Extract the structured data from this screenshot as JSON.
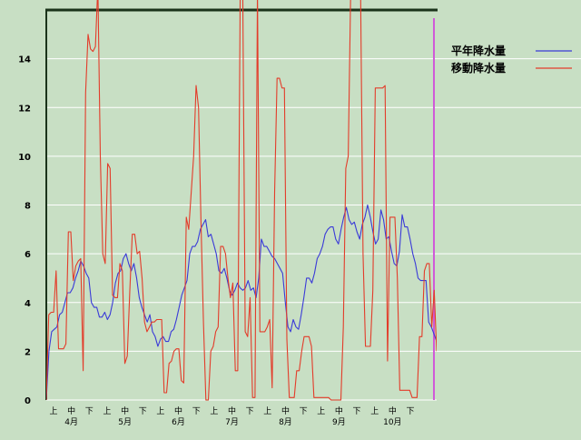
{
  "chart_data": {
    "type": "line",
    "ylim": [
      0,
      16
    ],
    "yticks": [
      0,
      2,
      4,
      6,
      8,
      10,
      12,
      14
    ],
    "grid": true,
    "legend_position": "top-right",
    "x_ticks": [
      "上",
      "中",
      "下",
      "上",
      "中",
      "下",
      "上",
      "中",
      "下",
      "上",
      "中",
      "下",
      "上",
      "中",
      "下",
      "上",
      "中",
      "下",
      "上",
      "中",
      "下"
    ],
    "months": [
      "4月",
      "5月",
      "6月",
      "7月",
      "8月",
      "9月",
      "10月"
    ],
    "series": [
      {
        "name": "平年降水量",
        "color": "#3a3ad8",
        "values": [
          0.0,
          2.0,
          2.8,
          2.9,
          3.0,
          3.5,
          3.6,
          4.0,
          4.4,
          4.4,
          4.6,
          5.0,
          5.3,
          5.7,
          5.5,
          5.2,
          5.0,
          4.0,
          3.8,
          3.8,
          3.4,
          3.4,
          3.6,
          3.3,
          3.5,
          4.0,
          4.8,
          5.2,
          5.3,
          5.8,
          6.0,
          5.6,
          5.3,
          5.6,
          5.0,
          4.2,
          3.8,
          3.5,
          3.2,
          3.5,
          2.8,
          2.6,
          2.2,
          2.5,
          2.6,
          2.4,
          2.4,
          2.8,
          2.9,
          3.3,
          3.8,
          4.3,
          4.6,
          4.9,
          6.0,
          6.3,
          6.3,
          6.5,
          7.0,
          7.2,
          7.4,
          6.7,
          6.8,
          6.4,
          6.0,
          5.3,
          5.2,
          5.4,
          5.0,
          4.5,
          4.3,
          4.5,
          4.8,
          4.6,
          4.5,
          4.6,
          4.9,
          4.5,
          4.6,
          4.2,
          5.0,
          6.6,
          6.3,
          6.3,
          6.1,
          5.9,
          5.8,
          5.6,
          5.4,
          5.2,
          4.0,
          3.0,
          2.8,
          3.3,
          3.0,
          2.9,
          3.5,
          4.2,
          5.0,
          5.0,
          4.8,
          5.2,
          5.8,
          6.0,
          6.3,
          6.8,
          7.0,
          7.1,
          7.1,
          6.6,
          6.4,
          7.0,
          7.5,
          7.9,
          7.4,
          7.2,
          7.3,
          6.9,
          6.6,
          7.2,
          7.5,
          8.0,
          7.5,
          6.9,
          6.4,
          6.6,
          7.8,
          7.4,
          6.6,
          6.7,
          6.1,
          5.6,
          5.5,
          6.1,
          7.6,
          7.1,
          7.1,
          6.6,
          6.0,
          5.6,
          5.0,
          4.9,
          4.9,
          4.9,
          3.2,
          3.0,
          2.7,
          2.4
        ]
      },
      {
        "name": "移動降水量",
        "color": "#e33c2a",
        "values": [
          0.0,
          3.5,
          3.6,
          3.6,
          5.3,
          2.1,
          2.1,
          2.1,
          2.3,
          6.9,
          6.9,
          4.9,
          5.5,
          5.7,
          5.8,
          1.2,
          12.6,
          15.0,
          14.4,
          14.3,
          14.5,
          17.0,
          10.0,
          6.0,
          5.6,
          9.7,
          9.5,
          4.3,
          4.2,
          4.2,
          5.6,
          5.3,
          1.5,
          1.8,
          4.4,
          6.8,
          6.8,
          6.0,
          6.1,
          5.0,
          3.2,
          2.8,
          3.0,
          3.2,
          3.2,
          3.3,
          3.3,
          3.3,
          0.3,
          0.3,
          1.5,
          1.6,
          2.0,
          2.1,
          2.1,
          0.8,
          0.7,
          7.5,
          7.0,
          8.5,
          10.0,
          12.9,
          12.0,
          7.3,
          3.2,
          0.0,
          0.0,
          2.0,
          2.2,
          2.8,
          3.0,
          6.3,
          6.3,
          6.0,
          5.0,
          4.2,
          4.8,
          1.2,
          1.2,
          16.8,
          16.8,
          2.8,
          2.6,
          4.2,
          0.1,
          0.1,
          16.8,
          2.8,
          2.8,
          2.8,
          3.0,
          3.3,
          0.5,
          8.5,
          13.2,
          13.2,
          12.8,
          12.8,
          2.5,
          0.1,
          0.1,
          0.1,
          1.2,
          1.2,
          2.0,
          2.6,
          2.6,
          2.6,
          2.2,
          0.1,
          0.1,
          0.1,
          0.1,
          0.1,
          0.1,
          0.1,
          0.0,
          0.0,
          0.0,
          0.0,
          0.0,
          3.0,
          9.5,
          10.0,
          16.8,
          16.8,
          16.8,
          16.8,
          16.8,
          6.0,
          2.2,
          2.2,
          2.2,
          4.5,
          12.8,
          12.8,
          12.8,
          12.8,
          12.9,
          1.6,
          7.5,
          7.5,
          7.5,
          5.0,
          0.4,
          0.4,
          0.4,
          0.4,
          0.4,
          0.1,
          0.1,
          0.1,
          2.6,
          2.6,
          5.3,
          5.6,
          5.6,
          3.0,
          4.5,
          2.0
        ]
      }
    ]
  }
}
